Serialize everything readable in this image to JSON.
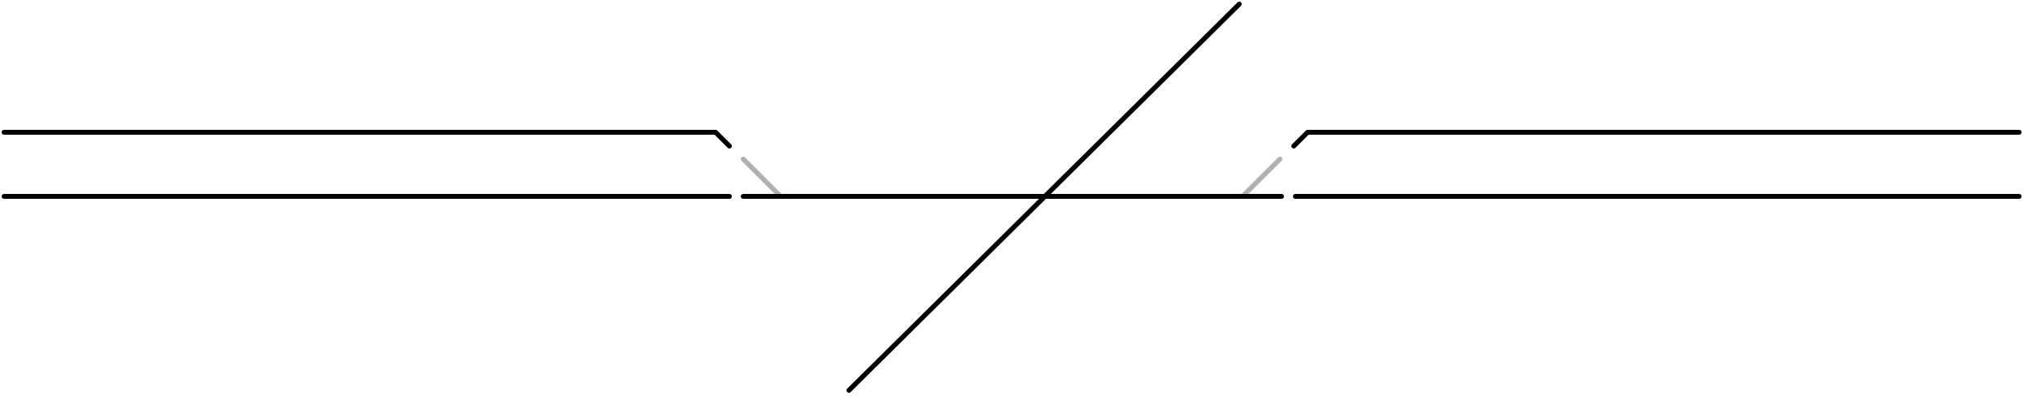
{
  "diagram": {
    "type": "railway-track-schematic",
    "colors": {
      "background": "#ffffff",
      "main_track": "#000000",
      "inactive_switch": "#b0b0b0"
    },
    "tracks": [
      {
        "id": "upper-left-track",
        "role": "main",
        "color": "#000000"
      },
      {
        "id": "upper-left-switch-diverge",
        "role": "main",
        "color": "#000000"
      },
      {
        "id": "upper-left-switch-inactive",
        "role": "inactive",
        "color": "#b0b0b0"
      },
      {
        "id": "lower-left-track",
        "role": "main",
        "color": "#000000"
      },
      {
        "id": "lower-middle-track",
        "role": "main",
        "color": "#000000"
      },
      {
        "id": "upper-right-switch-inactive",
        "role": "inactive",
        "color": "#b0b0b0"
      },
      {
        "id": "upper-right-switch-diverge",
        "role": "main",
        "color": "#000000"
      },
      {
        "id": "upper-right-track",
        "role": "main",
        "color": "#000000"
      },
      {
        "id": "lower-right-track",
        "role": "main",
        "color": "#000000"
      },
      {
        "id": "diagonal-crossing-track",
        "role": "main",
        "color": "#000000"
      }
    ]
  }
}
